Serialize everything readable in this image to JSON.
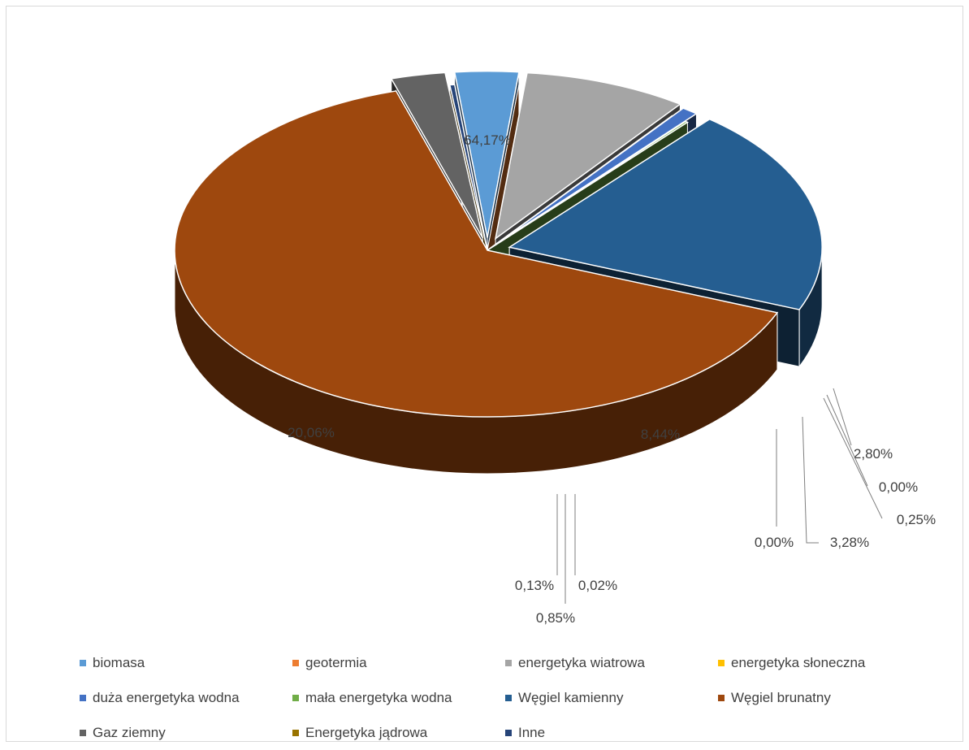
{
  "chart_data": {
    "type": "pie",
    "title": "",
    "legend_position": "bottom",
    "slices": [
      {
        "name": "biomasa",
        "value": 3.28,
        "label": "3,28%",
        "color": "#5b9bd5"
      },
      {
        "name": "geotermia",
        "value": 0.0,
        "label": "0,00%",
        "color": "#ed7d31"
      },
      {
        "name": "energetyka wiatrowa",
        "value": 8.44,
        "label": "8,44%",
        "color": "#a5a5a5"
      },
      {
        "name": "energetyka słoneczna",
        "value": 0.02,
        "label": "0,02%",
        "color": "#ffc000"
      },
      {
        "name": "duża energetyka wodna",
        "value": 0.85,
        "label": "0,85%",
        "color": "#4472c4"
      },
      {
        "name": "mała energetyka wodna",
        "value": 0.13,
        "label": "0,13%",
        "color": "#70ad47"
      },
      {
        "name": "Węgiel kamienny",
        "value": 20.06,
        "label": "20,06%",
        "color": "#255e91"
      },
      {
        "name": "Węgiel brunatny",
        "value": 64.17,
        "label": "64,17%",
        "color": "#9e480e"
      },
      {
        "name": "Gaz ziemny",
        "value": 2.8,
        "label": "2,80%",
        "color": "#636363"
      },
      {
        "name": "Energetyka jądrowa",
        "value": 0.0,
        "label": "0,00%",
        "color": "#997300"
      },
      {
        "name": "Inne",
        "value": 0.25,
        "label": "0,25%",
        "color": "#264478"
      }
    ]
  }
}
